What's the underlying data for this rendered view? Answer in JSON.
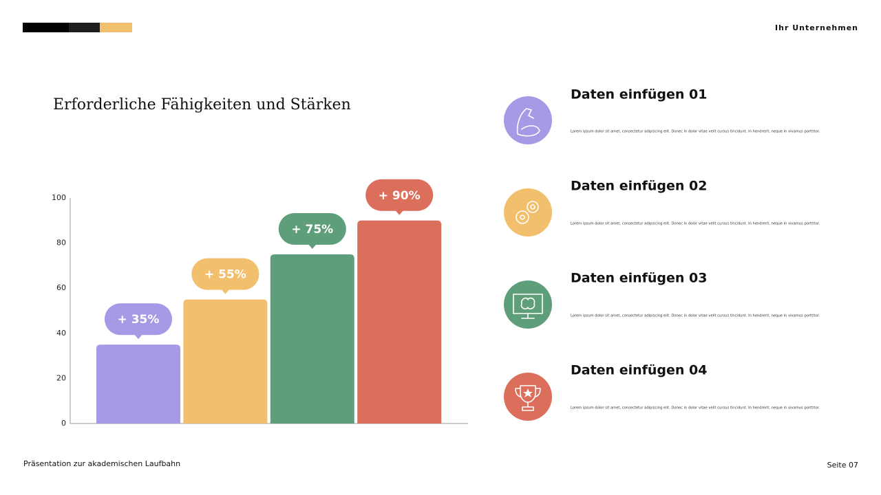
{
  "header": {
    "company": "Ihr Unternehmen"
  },
  "chart_data": {
    "type": "bar",
    "title": "Erforderliche Fähigkeiten und Stärken",
    "categories": [
      null,
      null,
      null,
      null
    ],
    "values": [
      35,
      55,
      75,
      90
    ],
    "value_labels": [
      "+ 35%",
      "+ 55%",
      "+ 75%",
      "+ 90%"
    ],
    "colors": [
      "#a59ae6",
      "#f2bf6c",
      "#5f9e7b",
      "#dc6f5c"
    ],
    "ylim": [
      0,
      100
    ],
    "yticks": [
      0,
      20,
      40,
      60,
      80,
      100
    ],
    "grid": false
  },
  "items": [
    {
      "title": "Daten einfügen 01",
      "text": "Lorem ipsum dolor sit amet, consectetur adipiscing elit. Donec in dolor vitae velit cursus tincidunt. In hendrerit, neque in vivamus porttitor."
    },
    {
      "title": "Daten einfügen 02",
      "text": "Lorem ipsum dolor sit amet, consectetur adipiscing elit. Donec in dolor vitae velit cursus tincidunt. In hendrerit, neque in vivamus porttitor."
    },
    {
      "title": "Daten einfügen 03",
      "text": "Lorem ipsum dolor sit amet, consectetur adipiscing elit. Donec in dolor vitae velit cursus tincidunt. In hendrerit, neque in vivamus porttitor."
    },
    {
      "title": "Daten einfügen 04",
      "text": "Lorem ipsum dolor sit amet, consectetur adipiscing elit. Donec in dolor vitae velit cursus tincidunt. In hendrerit, neque in vivamus porttitor."
    }
  ],
  "footer": {
    "left": "Präsentation zur akademischen Laufbahn",
    "page": "Seite 07"
  }
}
